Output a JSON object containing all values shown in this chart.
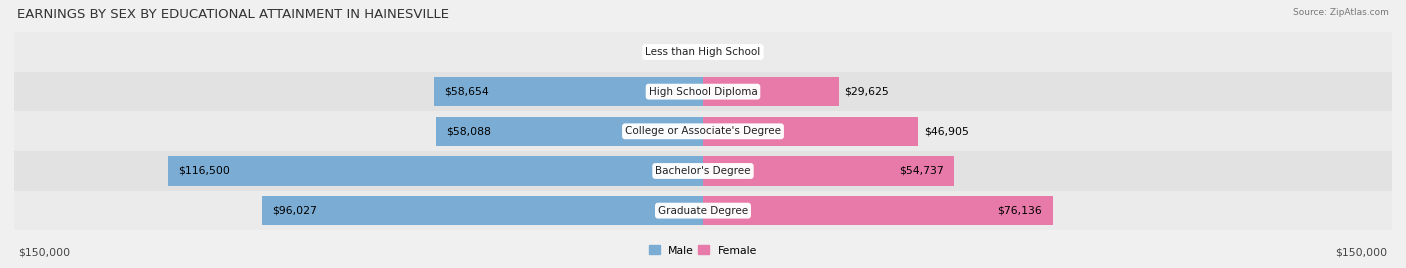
{
  "title": "EARNINGS BY SEX BY EDUCATIONAL ATTAINMENT IN HAINESVILLE",
  "source": "Source: ZipAtlas.com",
  "categories": [
    "Less than High School",
    "High School Diploma",
    "College or Associate's Degree",
    "Bachelor's Degree",
    "Graduate Degree"
  ],
  "male_values": [
    0,
    58654,
    58088,
    116500,
    96027
  ],
  "female_values": [
    0,
    29625,
    46905,
    54737,
    76136
  ],
  "male_color": "#7bacd4",
  "female_color": "#e87aaa",
  "row_bg_even": "#ebebeb",
  "row_bg_odd": "#e2e2e2",
  "max_value": 150000,
  "x_label_left": "$150,000",
  "x_label_right": "$150,000",
  "legend_male": "Male",
  "legend_female": "Female",
  "title_fontsize": 9.5,
  "label_fontsize": 7.8,
  "category_fontsize": 7.5,
  "source_fontsize": 6.5,
  "background_color": "#f0f0f0"
}
